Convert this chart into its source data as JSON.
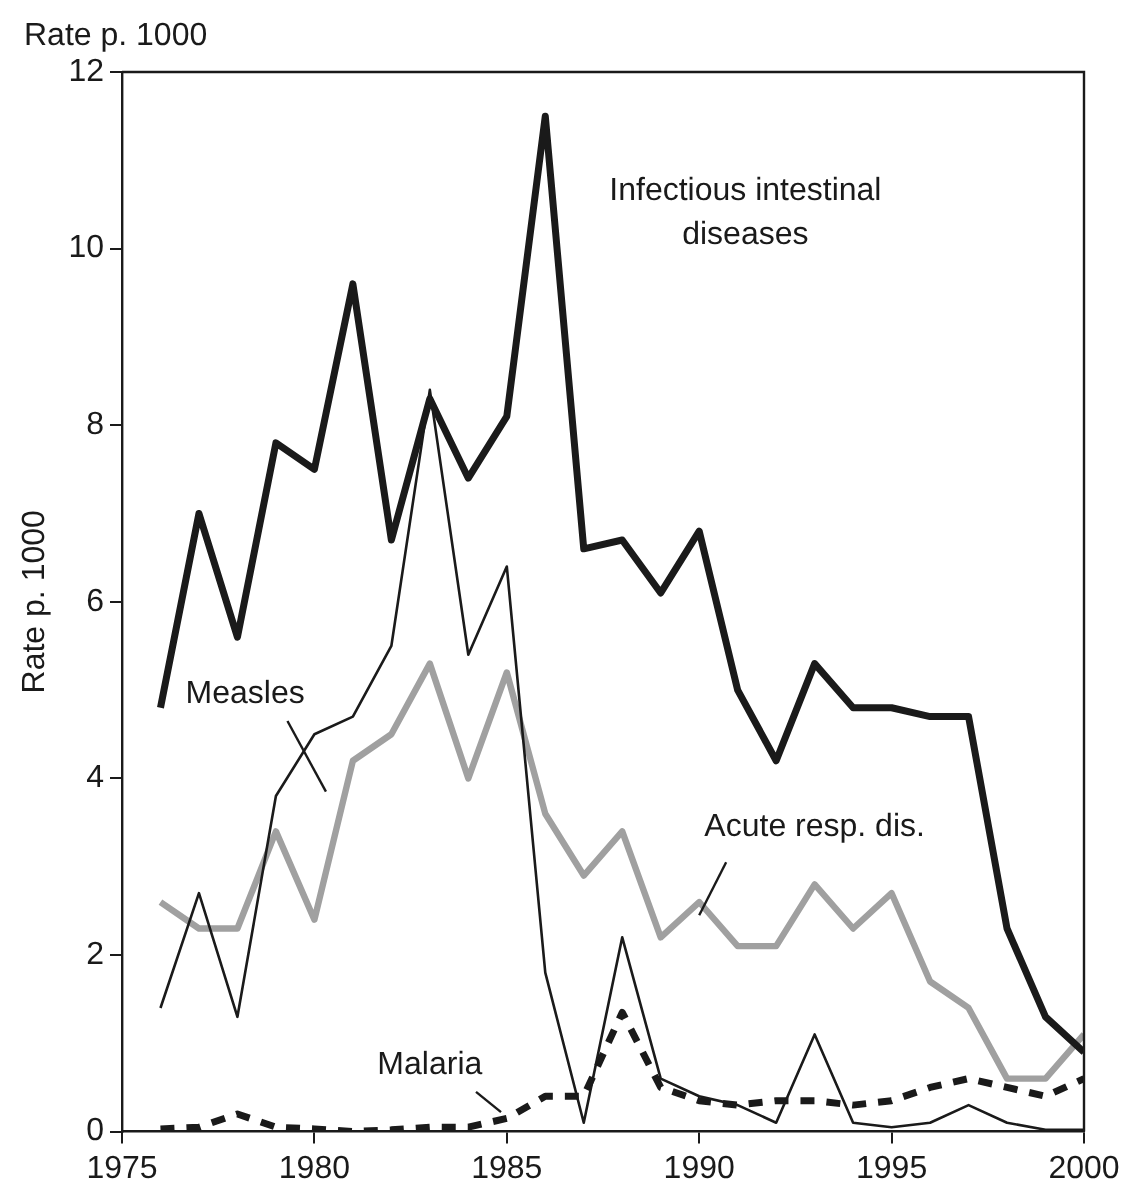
{
  "chart_data": {
    "type": "line",
    "ylabel": "Rate p. 1000",
    "annotations": [
      "Rate p. 1000"
    ],
    "x": [
      1976,
      1977,
      1978,
      1979,
      1980,
      1981,
      1982,
      1983,
      1984,
      1985,
      1986,
      1987,
      1988,
      1989,
      1990,
      1991,
      1992,
      1993,
      1994,
      1995,
      1996,
      1997,
      1998,
      1999,
      2000
    ],
    "xlim": [
      1975,
      2000
    ],
    "xticks": [
      1975,
      1980,
      1985,
      1990,
      1995,
      2000
    ],
    "ylim": [
      0,
      12
    ],
    "yticks": [
      0,
      2,
      4,
      6,
      8,
      10,
      12
    ],
    "grid": false,
    "legend": false,
    "marker": "none",
    "series": [
      {
        "name": "Infectious intestinal diseases",
        "color": "#1a1a1a",
        "values": [
          4.8,
          7.0,
          5.6,
          7.8,
          7.5,
          9.6,
          6.7,
          8.3,
          7.4,
          8.1,
          11.5,
          6.6,
          6.7,
          6.1,
          6.8,
          5.0,
          4.2,
          5.3,
          4.8,
          4.8,
          4.7,
          4.7,
          2.3,
          1.3,
          0.9
        ]
      },
      {
        "name": "Measles",
        "color": "#1a1a1a",
        "values": [
          1.4,
          2.7,
          1.3,
          3.8,
          4.5,
          4.7,
          5.5,
          8.4,
          5.4,
          6.4,
          1.8,
          0.1,
          2.2,
          0.6,
          0.4,
          0.3,
          0.1,
          1.1,
          0.1,
          0.05,
          0.1,
          0.3,
          0.1,
          0.02,
          0.02
        ]
      },
      {
        "name": "Acute resp. dis.",
        "color": "#a0a0a0",
        "values": [
          2.6,
          2.3,
          2.3,
          3.4,
          2.4,
          4.2,
          4.5,
          5.3,
          4.0,
          5.2,
          3.6,
          2.9,
          3.4,
          2.2,
          2.6,
          2.1,
          2.1,
          2.8,
          2.3,
          2.7,
          1.7,
          1.4,
          0.6,
          0.6,
          1.1
        ]
      },
      {
        "name": "Malaria",
        "color": "#1a1a1a",
        "line_style": "dashed",
        "values": [
          0.03,
          0.05,
          0.2,
          0.05,
          0.03,
          0.0,
          0.02,
          0.05,
          0.05,
          0.15,
          0.4,
          0.4,
          1.35,
          0.5,
          0.35,
          0.3,
          0.35,
          0.35,
          0.3,
          0.35,
          0.5,
          0.6,
          0.5,
          0.4,
          0.6
        ]
      }
    ]
  }
}
